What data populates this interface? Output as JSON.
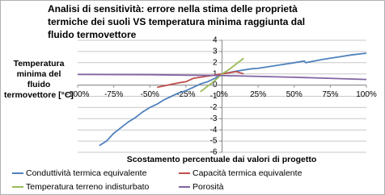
{
  "chart_data": {
    "type": "line",
    "title": "Analisi di sensitività: errore nella stima delle proprietà termiche dei suoli VS temperatura minima raggiunta dal fluido termovettore",
    "x_label": "Scostamento percentuale dai valori di progetto",
    "y_label": "Temperatura minima del fluido termovettore [°C]",
    "xlim": [
      -100,
      100
    ],
    "xticks": [
      {
        "value": -100,
        "label": "-100%"
      },
      {
        "value": -75,
        "label": "-75%"
      },
      {
        "value": -50,
        "label": "-50%"
      },
      {
        "value": -25,
        "label": "-25%"
      },
      {
        "value": 0,
        "label": "0%"
      },
      {
        "value": 25,
        "label": "25%"
      },
      {
        "value": 50,
        "label": "50%"
      },
      {
        "value": 75,
        "label": "75%"
      },
      {
        "value": 100,
        "label": "100%"
      }
    ],
    "ylim": [
      -6,
      4
    ],
    "yticks": [
      -6,
      -5,
      -4,
      -3,
      -2,
      -1,
      0,
      1,
      2,
      3,
      4
    ],
    "grid": true,
    "series": [
      {
        "name": "Conduttività termica equivalente",
        "color": "#4f81bd",
        "x": [
          -85,
          -80,
          -75,
          -70,
          -65,
          -60,
          -55,
          -50,
          -45,
          -40,
          -35,
          -30,
          -25,
          -20,
          -15,
          -10,
          -5,
          0,
          10,
          20,
          25,
          30,
          40,
          50,
          57,
          58,
          70,
          80,
          90,
          100
        ],
        "values": [
          -5.4,
          -5.0,
          -4.3,
          -3.8,
          -3.3,
          -2.9,
          -2.4,
          -2.0,
          -1.7,
          -1.3,
          -1.0,
          -0.7,
          -0.5,
          -0.2,
          0.1,
          0.3,
          0.6,
          1.0,
          1.25,
          1.45,
          1.5,
          1.6,
          1.8,
          2.0,
          2.15,
          2.0,
          2.3,
          2.5,
          2.7,
          2.85
        ]
      },
      {
        "name": "Capacità termica equivalente",
        "color": "#c0504d",
        "x": [
          -45,
          -30,
          -25,
          -20,
          -10,
          0,
          10,
          15
        ],
        "values": [
          -0.2,
          0.2,
          0.3,
          0.6,
          0.8,
          1.0,
          1.2,
          1.0
        ]
      },
      {
        "name": "Temperatura terreno indisturbato",
        "color": "#9bbb59",
        "x": [
          -15,
          -5,
          0,
          5,
          15
        ],
        "values": [
          -0.6,
          0.4,
          1.0,
          1.4,
          2.4
        ]
      },
      {
        "name": "Porosità",
        "color": "#8064a2",
        "x": [
          -100,
          -50,
          0,
          50,
          100
        ],
        "values": [
          0.95,
          0.93,
          0.85,
          0.7,
          0.5
        ]
      }
    ]
  }
}
